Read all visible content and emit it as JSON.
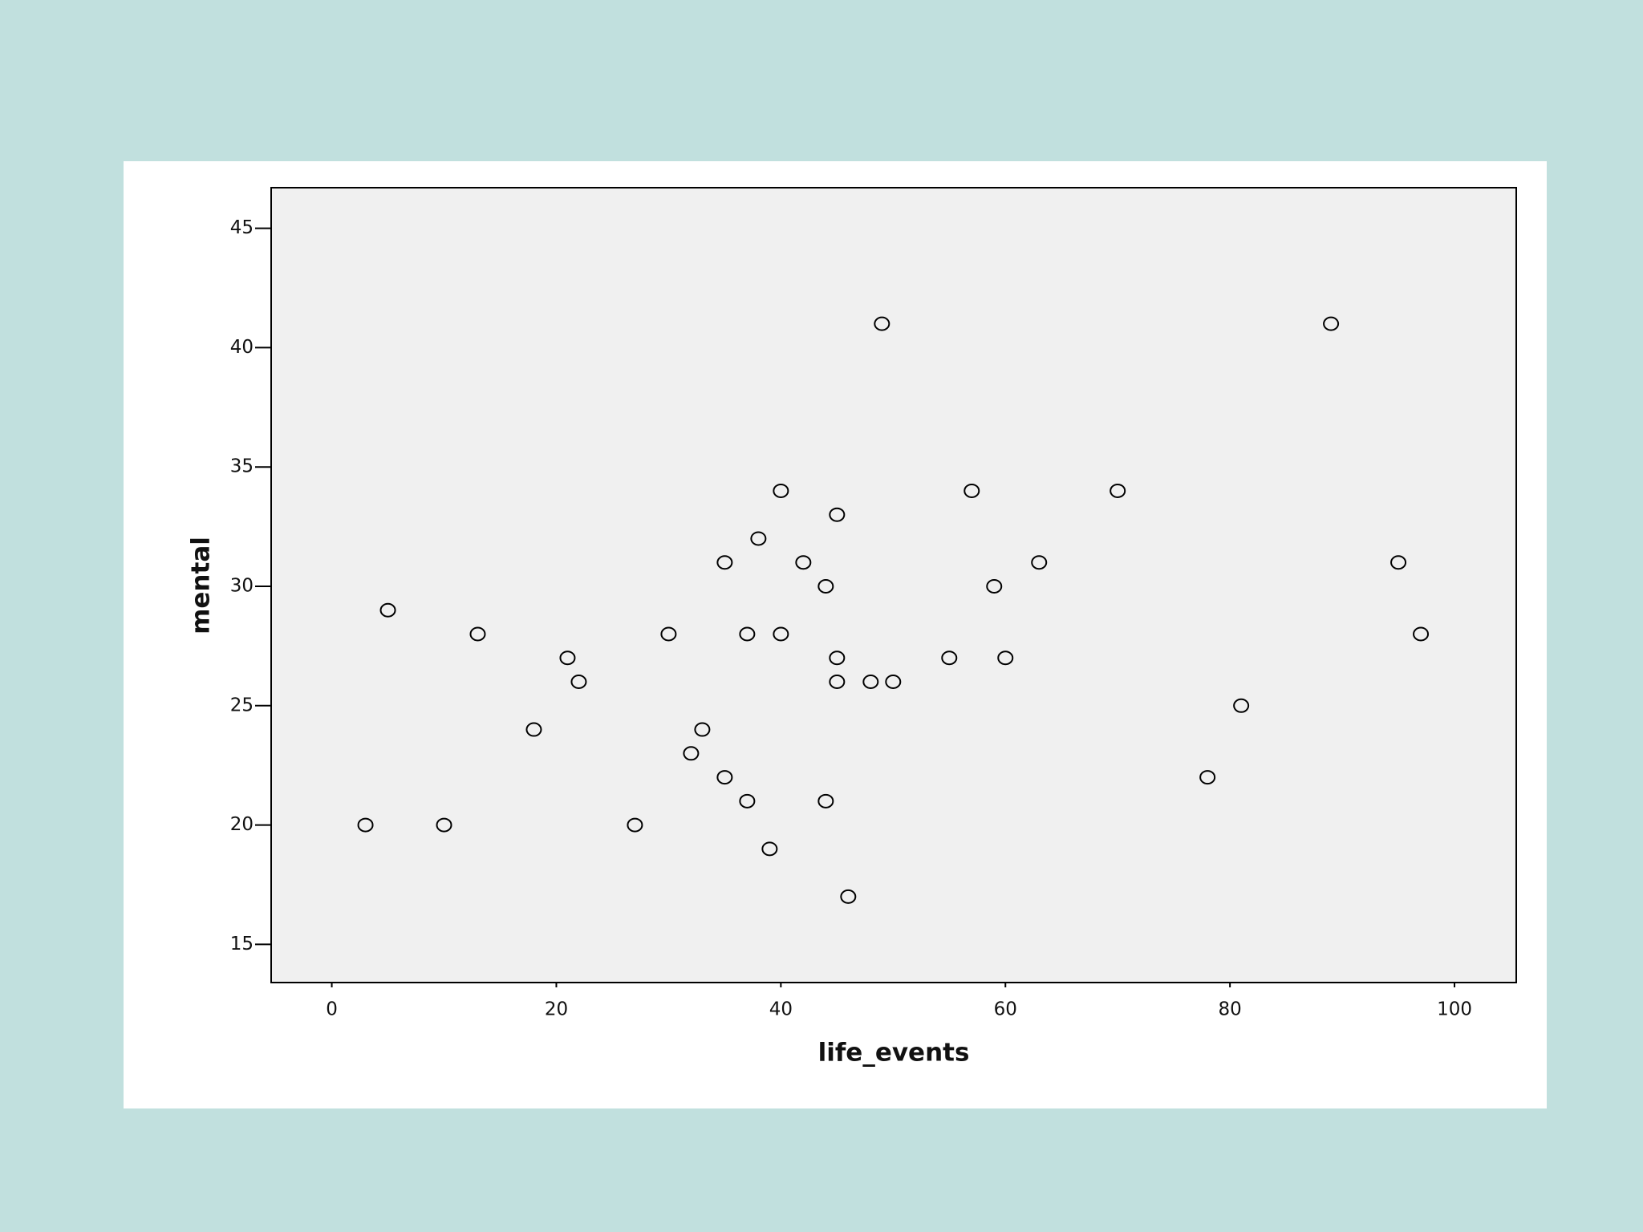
{
  "chart_data": {
    "type": "scatter",
    "xlabel": "life_events",
    "ylabel": "mental",
    "x": [
      5,
      3,
      10,
      13,
      18,
      21,
      22,
      27,
      30,
      32,
      33,
      35,
      35,
      37,
      37,
      38,
      39,
      40,
      40,
      42,
      44,
      44,
      45,
      45,
      45,
      46,
      48,
      49,
      50,
      55,
      57,
      59,
      60,
      63,
      70,
      78,
      81,
      89,
      95,
      97
    ],
    "series": [
      {
        "color": "#000000",
        "values": [
          29,
          20,
          20,
          28,
          24,
          27,
          26,
          20,
          28,
          23,
          24,
          31,
          22,
          28,
          21,
          32,
          19,
          34,
          28,
          31,
          30,
          21,
          33,
          27,
          26,
          17,
          26,
          41,
          26,
          27,
          34,
          30,
          27,
          31,
          34,
          22,
          25,
          41,
          31,
          28
        ]
      }
    ],
    "xlim": [
      -5.4,
      105.5
    ],
    "xticks": [
      0,
      20,
      40,
      60,
      80,
      100
    ],
    "ylim": [
      13.4,
      46.7
    ],
    "yticks": [
      15,
      20,
      25,
      30,
      35,
      40,
      45
    ]
  }
}
